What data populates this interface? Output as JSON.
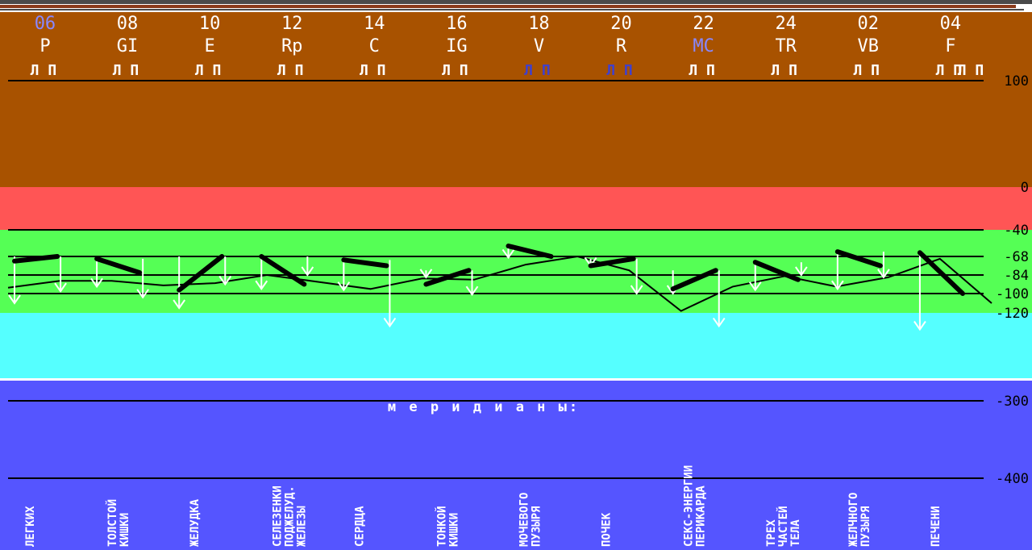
{
  "chart_data": {
    "type": "line",
    "meridians": [
      {
        "num": "06",
        "code": "P",
        "num_color": "#8888ff",
        "code_color": "#ffffff",
        "lp_color": "#ffffff",
        "name": "ЛЕГКИХ",
        "left": -72,
        "right": -68,
        "drop": -98,
        "drop2": -110
      },
      {
        "num": "08",
        "code": "GI",
        "num_color": "#ffffff",
        "code_color": "#ffffff",
        "lp_color": "#ffffff",
        "name": "ТОЛСТОЙ КИШКИ",
        "left": -70,
        "right": -82,
        "drop": -104,
        "drop2": -94
      },
      {
        "num": "10",
        "code": "E",
        "num_color": "#ffffff",
        "code_color": "#ffffff",
        "lp_color": "#ffffff",
        "name": "ЖЕЛУДКА",
        "left": -97,
        "right": -68,
        "drop": -92,
        "drop2": -115
      },
      {
        "num": "12",
        "code": "Rp",
        "num_color": "#ffffff",
        "code_color": "#ffffff",
        "lp_color": "#ffffff",
        "name": "СЕЛЕЗЕНКИ ПОДЖЕЛУД. ЖЕЛЕЗЫ",
        "left": -68,
        "right": -92,
        "drop": -84,
        "drop2": -96
      },
      {
        "num": "14",
        "code": "C",
        "num_color": "#ffffff",
        "code_color": "#ffffff",
        "lp_color": "#ffffff",
        "name": "СЕРДЦА",
        "left": -71,
        "right": -76,
        "drop": -132,
        "drop2": -97
      },
      {
        "num": "16",
        "code": "IG",
        "num_color": "#ffffff",
        "code_color": "#ffffff",
        "lp_color": "#ffffff",
        "name": "ТОНКОЙ КИШКИ",
        "left": -92,
        "right": -80,
        "drop": -101,
        "drop2": -86
      },
      {
        "num": "18",
        "code": "V",
        "num_color": "#ffffff",
        "code_color": "#ffffff",
        "lp_color": "#4040cc",
        "name": "МОЧЕВОГО ПУЗЫРЯ",
        "left": -57,
        "right": -68,
        "drop": -40,
        "drop2": -69
      },
      {
        "num": "20",
        "code": "R",
        "num_color": "#ffffff",
        "code_color": "#ffffff",
        "lp_color": "#4040cc",
        "name": "ПОЧЕК",
        "left": -76,
        "right": -70,
        "drop": -100,
        "drop2": -76
      },
      {
        "num": "22",
        "code": "MC",
        "num_color": "#ffffff",
        "code_color": "#8888ff",
        "lp_color": "#ffffff",
        "name": "СЕКС-ЭНЕРГИИ ПЕРИКАРДА",
        "left": -96,
        "right": -80,
        "drop": -132,
        "drop2": -100
      },
      {
        "num": "24",
        "code": "TR",
        "num_color": "#ffffff",
        "code_color": "#ffffff",
        "lp_color": "#ffffff",
        "name": "ТРЕХ ЧАСТЕЙ ТЕЛА",
        "left": -73,
        "right": -88,
        "drop": -84,
        "drop2": -97
      },
      {
        "num": "02",
        "code": "VB",
        "num_color": "#ffffff",
        "code_color": "#ffffff",
        "lp_color": "#ffffff",
        "name": "ЖЕЛЧНОГО ПУЗЫРЯ",
        "left": -63,
        "right": -76,
        "drop": -86,
        "drop2": -96
      },
      {
        "num": "04",
        "code": "F",
        "num_color": "#ffffff",
        "code_color": "#ffffff",
        "lp_color": "#ffffff",
        "name": "ПЕЧЕНИ",
        "left": -64,
        "right": -100,
        "drop": -68,
        "drop2": -135
      }
    ],
    "lp_label": "Л П",
    "yticks": [
      "100",
      "0",
      "-40",
      "-68",
      "-84",
      "-100",
      "-120",
      "-300",
      "-400"
    ],
    "meridians_title": "м е р и д и а н ы:",
    "zones": [
      {
        "from": 100,
        "to": 0,
        "color": "#a85200"
      },
      {
        "from": 0,
        "to": -40,
        "color": "#ff5555"
      },
      {
        "from": -40,
        "to": -120,
        "color": "#55ff55"
      },
      {
        "from": -120,
        "to": -180,
        "color": "#55ffff"
      },
      {
        "from": -180,
        "to": -450,
        "color": "#5555ff"
      }
    ],
    "reference_lines": [
      100,
      -68,
      -84,
      -100,
      -300,
      -400
    ],
    "avg_line": [
      -95,
      -89,
      -89,
      -93,
      -91,
      -84,
      -90,
      -96,
      -87,
      -88,
      -75,
      -68,
      -80,
      -118,
      -94,
      -85,
      -94,
      -86,
      -70,
      -110
    ],
    "colors": {
      "bar": "#000000",
      "arrow": "#ffffff",
      "line": "#000000",
      "lp": "#ffffff"
    }
  }
}
